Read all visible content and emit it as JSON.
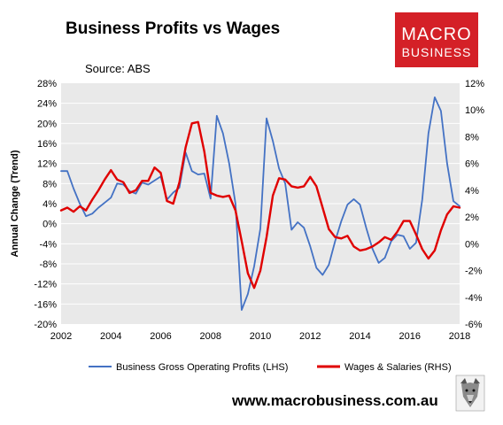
{
  "header": {
    "title": "Business Profits vs Wages",
    "source": "Source: ABS"
  },
  "logo": {
    "line1": "MACRO",
    "line2": "BUSINESS",
    "color": "#d42027"
  },
  "footer": {
    "website": "www.macrobusiness.com.au",
    "wolf_icon": "wolf-icon"
  },
  "colors": {
    "profits": "#4472c4",
    "wages": "#e00000",
    "plot_bg": "#e9e9e9",
    "grid": "#ffffff"
  },
  "chart_data": {
    "type": "line",
    "ylabel": "Annual Change (Trend)",
    "xlim": [
      2002,
      2018
    ],
    "ylim_left": [
      -20,
      28
    ],
    "ylim_right": [
      -6,
      12
    ],
    "x_ticks": [
      "2002",
      "2004",
      "2006",
      "2008",
      "2010",
      "2012",
      "2014",
      "2016",
      "2018"
    ],
    "y_ticks_left": [
      "28%",
      "24%",
      "20%",
      "16%",
      "12%",
      "8%",
      "4%",
      "0%",
      "-4%",
      "-8%",
      "-12%",
      "-16%",
      "-20%"
    ],
    "y_ticks_right": [
      "12%",
      "10%",
      "8%",
      "6%",
      "4%",
      "2%",
      "0%",
      "-2%",
      "-4%",
      "-6%"
    ],
    "grid": true,
    "legend_position": "bottom",
    "series": [
      {
        "name": "Business Gross Operating Profits (LHS)",
        "axis": "left",
        "color": "#4472c4",
        "x": [
          2002.0,
          2002.25,
          2002.5,
          2002.75,
          2003.0,
          2003.25,
          2003.5,
          2003.75,
          2004.0,
          2004.25,
          2004.5,
          2004.75,
          2005.0,
          2005.25,
          2005.5,
          2005.75,
          2006.0,
          2006.25,
          2006.5,
          2006.75,
          2007.0,
          2007.25,
          2007.5,
          2007.75,
          2008.0,
          2008.25,
          2008.5,
          2008.75,
          2009.0,
          2009.25,
          2009.5,
          2009.75,
          2010.0,
          2010.25,
          2010.5,
          2010.75,
          2011.0,
          2011.25,
          2011.5,
          2011.75,
          2012.0,
          2012.25,
          2012.5,
          2012.75,
          2013.0,
          2013.25,
          2013.5,
          2013.75,
          2014.0,
          2014.25,
          2014.5,
          2014.75,
          2015.0,
          2015.25,
          2015.5,
          2015.75,
          2016.0,
          2016.25,
          2016.5,
          2016.75,
          2017.0,
          2017.25,
          2017.5,
          2017.75,
          2018.0
        ],
        "values": [
          10.5,
          10.5,
          7,
          4,
          1.5,
          2,
          3.2,
          4.2,
          5.2,
          8,
          7.8,
          6.5,
          6,
          8.2,
          7.8,
          8.6,
          9.4,
          4.8,
          6.2,
          7.2,
          14.2,
          10.5,
          9.8,
          10,
          5,
          21.5,
          18,
          12,
          4,
          -17.2,
          -14,
          -8.5,
          -1,
          21,
          16.5,
          11,
          8,
          -1.2,
          0.3,
          -0.8,
          -4.5,
          -8.8,
          -10.2,
          -8.2,
          -3.5,
          0.5,
          3.8,
          4.9,
          3.8,
          -0.8,
          -5,
          -7.8,
          -6.8,
          -3.5,
          -2.2,
          -2.5,
          -5,
          -3.8,
          4.8,
          18,
          25.2,
          22.5,
          12,
          4.5,
          3.5
        ]
      },
      {
        "name": "Wages & Salaries (RHS)",
        "axis": "right",
        "color": "#e00000",
        "x": [
          2002.0,
          2002.25,
          2002.5,
          2002.75,
          2003.0,
          2003.25,
          2003.5,
          2003.75,
          2004.0,
          2004.25,
          2004.5,
          2004.75,
          2005.0,
          2005.25,
          2005.5,
          2005.75,
          2006.0,
          2006.25,
          2006.5,
          2006.75,
          2007.0,
          2007.25,
          2007.5,
          2007.75,
          2008.0,
          2008.25,
          2008.5,
          2008.75,
          2009.0,
          2009.25,
          2009.5,
          2009.75,
          2010.0,
          2010.25,
          2010.5,
          2010.75,
          2011.0,
          2011.25,
          2011.5,
          2011.75,
          2012.0,
          2012.25,
          2012.5,
          2012.75,
          2013.0,
          2013.25,
          2013.5,
          2013.75,
          2014.0,
          2014.25,
          2014.5,
          2014.75,
          2015.0,
          2015.25,
          2015.5,
          2015.75,
          2016.0,
          2016.25,
          2016.5,
          2016.75,
          2017.0,
          2017.25,
          2017.5,
          2017.75,
          2018.0
        ],
        "values": [
          2.5,
          2.7,
          2.4,
          2.8,
          2.5,
          3.3,
          4.0,
          4.8,
          5.5,
          4.8,
          4.6,
          3.8,
          4.0,
          4.7,
          4.7,
          5.7,
          5.3,
          3.2,
          3.0,
          4.6,
          7.2,
          9.0,
          9.1,
          6.9,
          3.8,
          3.6,
          3.5,
          3.6,
          2.5,
          0.2,
          -2.2,
          -3.3,
          -2.0,
          0.5,
          3.6,
          4.9,
          4.8,
          4.3,
          4.2,
          4.3,
          5.0,
          4.3,
          2.7,
          1.1,
          0.5,
          0.4,
          0.6,
          -0.2,
          -0.5,
          -0.4,
          -0.2,
          0.1,
          0.5,
          0.3,
          0.9,
          1.7,
          1.7,
          0.7,
          -0.4,
          -1.1,
          -0.5,
          1.0,
          2.2,
          2.8,
          2.7
        ]
      }
    ]
  }
}
